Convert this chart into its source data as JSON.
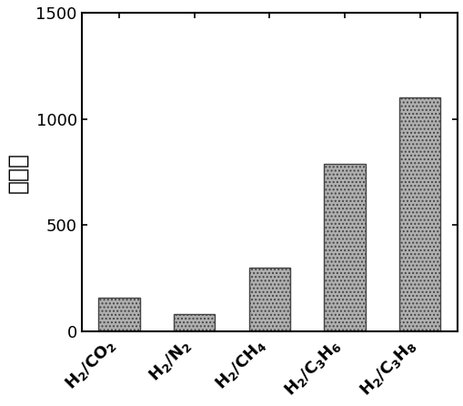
{
  "values": [
    160,
    80,
    300,
    790,
    1100
  ],
  "bar_color": "#b0b0b0",
  "bar_edgecolor": "#444444",
  "ylabel": "选择性",
  "ylim": [
    0,
    1500
  ],
  "yticks": [
    0,
    500,
    1000,
    1500
  ],
  "background_color": "#ffffff",
  "ylabel_fontsize": 18,
  "ytick_fontsize": 13,
  "xtick_fontsize": 13,
  "bar_width": 0.55,
  "hatch": "...."
}
